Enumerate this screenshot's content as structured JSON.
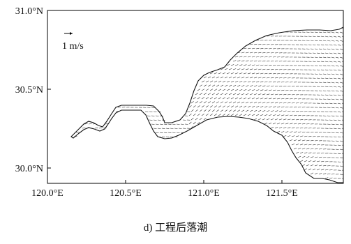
{
  "map": {
    "lon_ticks": [
      "120.0°E",
      "120.5°E",
      "121.0°E",
      "121.5°E"
    ],
    "lat_ticks": [
      "31.0°N",
      "30.5°N",
      "30.0°N"
    ],
    "lon_range": [
      120.0,
      121.9
    ],
    "lat_range": [
      29.9,
      31.0
    ],
    "scale_arrow": {
      "value_m_per_s": 1,
      "label": "1 m/s"
    },
    "field": "current velocity vectors (ebb tide)",
    "colors": {
      "coastline": "#111111",
      "vectors": "#222222",
      "frame": "#000000"
    }
  },
  "caption": "d) 工程后落潮"
}
